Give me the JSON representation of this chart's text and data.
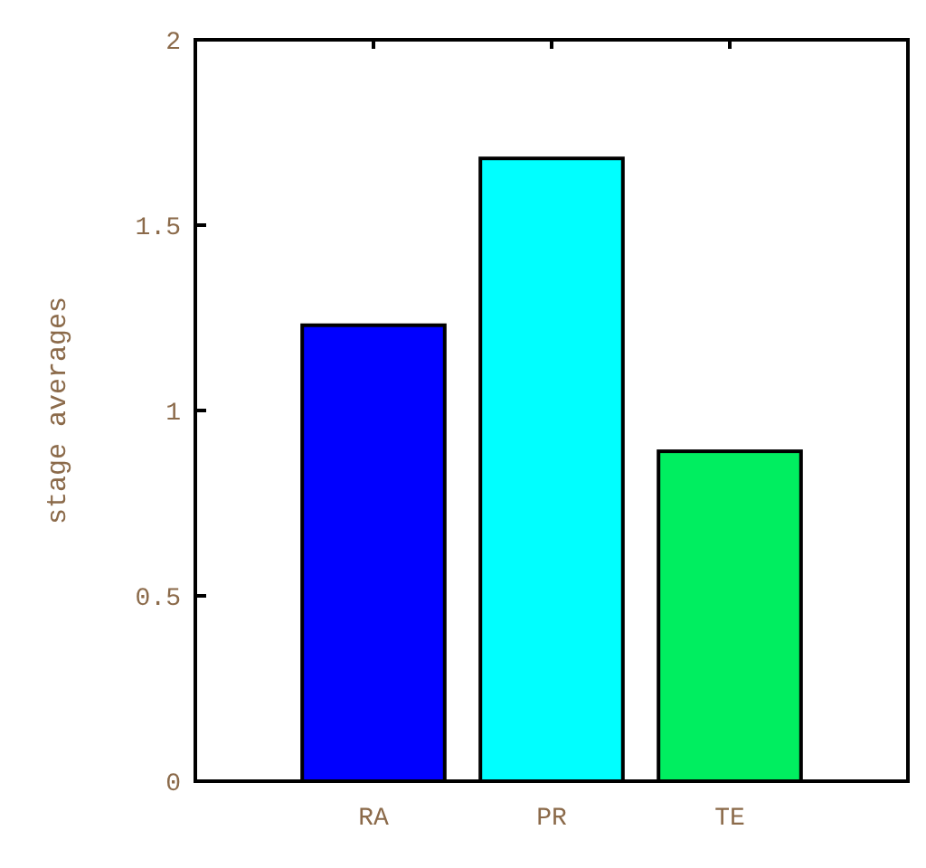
{
  "chart_data": {
    "type": "bar",
    "ylabel": "stage averages",
    "categories": [
      "RA",
      "PR",
      "TE"
    ],
    "values": [
      1.23,
      1.68,
      0.89
    ],
    "colors": [
      "#0000ff",
      "#00ffff",
      "#00ee60"
    ],
    "ylim": [
      0,
      2
    ],
    "yticks": [
      0,
      0.5,
      1,
      1.5,
      2
    ]
  }
}
